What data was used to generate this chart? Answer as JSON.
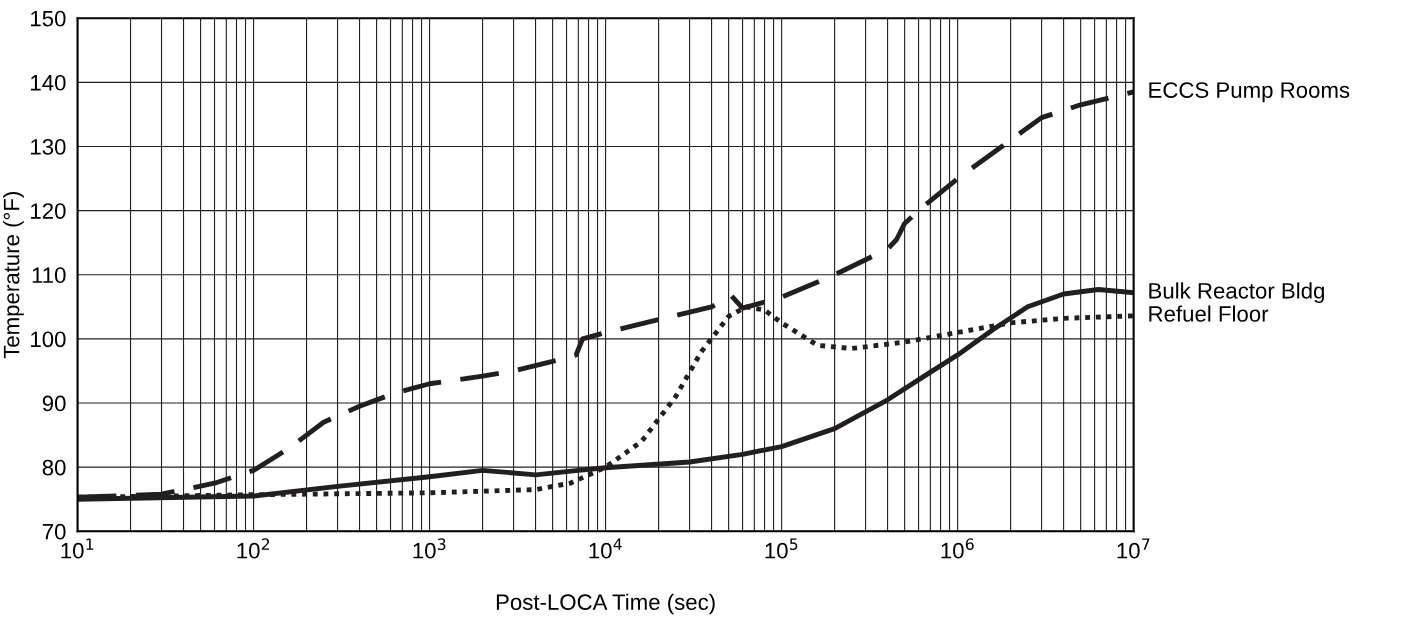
{
  "chart_data": {
    "type": "line",
    "xlabel": "Post-LOCA Time (sec)",
    "ylabel": "Temperature (°F)",
    "log": "x",
    "grid": true,
    "legend": false,
    "xlim": [
      10,
      10000000
    ],
    "ylim": [
      70,
      150
    ],
    "xticks": [
      {
        "value": 10,
        "label": "10$^{1}$"
      },
      {
        "value": 100,
        "label": "10$^{2}$"
      },
      {
        "value": 1000,
        "label": "10$^{3}$"
      },
      {
        "value": 10000,
        "label": "10$^{4}$"
      },
      {
        "value": 100000,
        "label": "10$^{5}$"
      },
      {
        "value": 1000000,
        "label": "10$^{6}$"
      },
      {
        "value": 10000000,
        "label": "10$^{7}$"
      }
    ],
    "yticks": [
      70,
      80,
      90,
      100,
      110,
      120,
      130,
      140,
      150
    ],
    "series": [
      {
        "name": "ECCS Pump Rooms",
        "color": "#231f20",
        "line_style": "dashed",
        "x": [
          10,
          30,
          60,
          100,
          160,
          250,
          400,
          630,
          1000,
          2000,
          3000,
          5000,
          6800,
          7400,
          10000,
          20000,
          40000,
          52000,
          60000,
          100000,
          200000,
          400000,
          450000,
          500000,
          630000,
          1000000,
          2000000,
          3000000,
          5000000,
          10000000
        ],
        "values": [
          75.3,
          75.8,
          77.5,
          79.5,
          83,
          87,
          89.5,
          91.5,
          93,
          94.2,
          95,
          96.5,
          97.5,
          100,
          101,
          103,
          105,
          106.7,
          104.8,
          106.5,
          110,
          114,
          115.5,
          118,
          120.5,
          125,
          131,
          134.5,
          136.5,
          138.5
        ]
      },
      {
        "name": "Bulk Reactor Bldg",
        "color": "#231f20",
        "line_style": "solid",
        "x": [
          10,
          100,
          300,
          1000,
          2000,
          4000,
          7000,
          10000,
          30000,
          60000,
          100000,
          200000,
          400000,
          630000,
          1000000,
          1600000,
          2500000,
          4000000,
          6300000,
          10000000
        ],
        "values": [
          75,
          75.5,
          77,
          78.5,
          79.5,
          78.8,
          79.5,
          79.9,
          80.8,
          82,
          83.2,
          86,
          90.5,
          94,
          97.5,
          101.5,
          105,
          107,
          107.7,
          107.2
        ]
      },
      {
        "name": "Refuel Floor",
        "color": "#231f20",
        "line_style": "dotted",
        "x": [
          10,
          100,
          1000,
          4000,
          6300,
          10000,
          16000,
          25000,
          35000,
          50000,
          63000,
          80000,
          100000,
          160000,
          250000,
          500000,
          1000000,
          2000000,
          4000000,
          10000000
        ],
        "values": [
          75.3,
          75.7,
          76,
          76.5,
          77.5,
          80,
          84,
          91,
          98,
          103.5,
          105,
          104.5,
          102.5,
          99,
          98.5,
          99.5,
          101,
          102.5,
          103.2,
          103.6
        ]
      }
    ]
  }
}
